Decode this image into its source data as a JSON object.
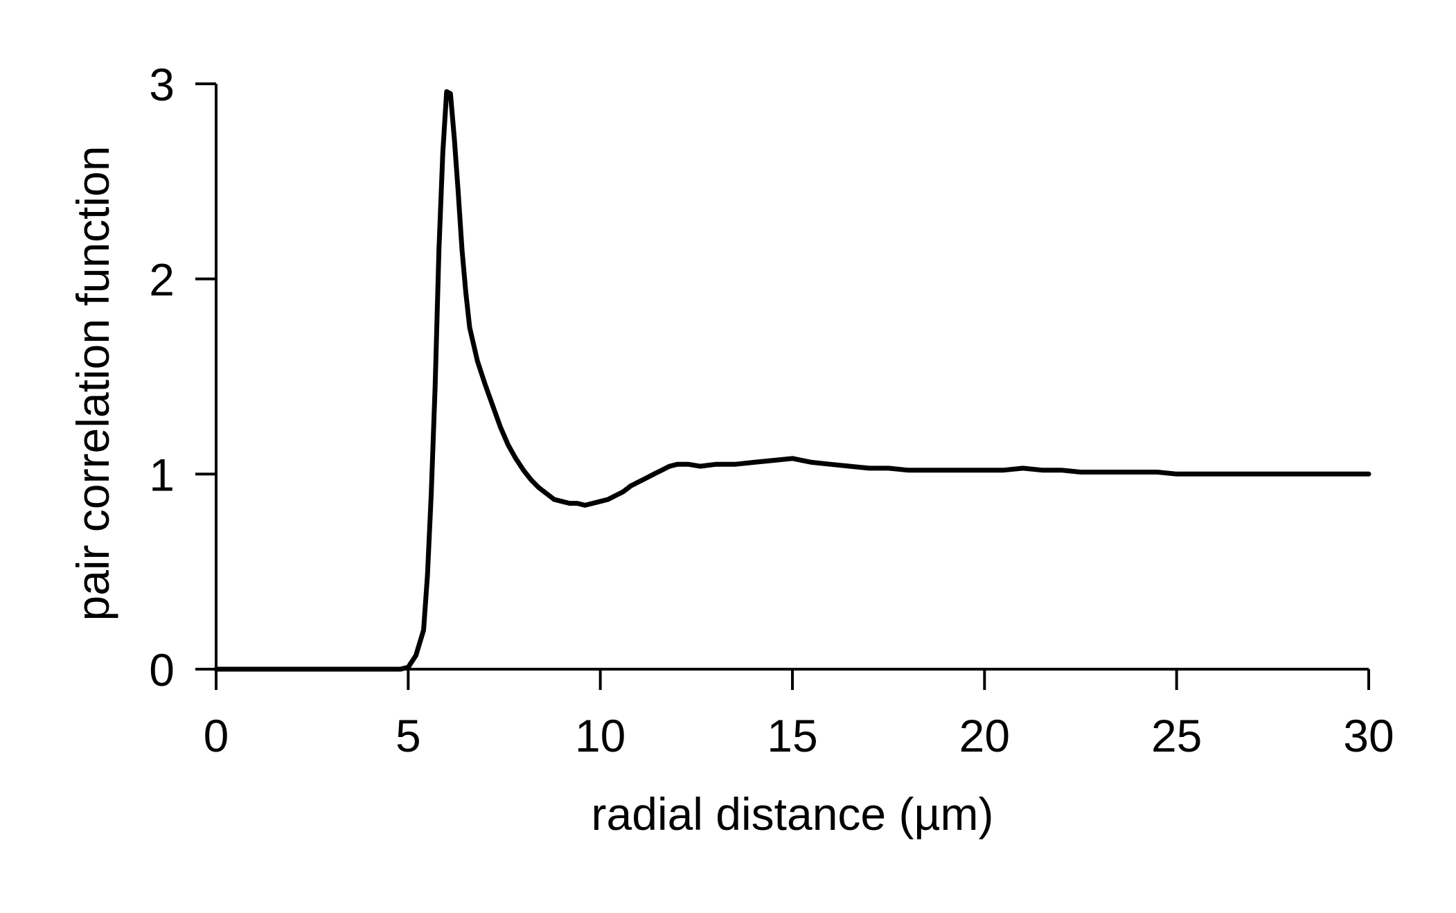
{
  "chart_data": {
    "type": "line",
    "title": "",
    "xlabel": "radial distance (µm)",
    "ylabel": "pair correlation function",
    "xlim": [
      0,
      30
    ],
    "ylim": [
      0,
      3
    ],
    "x_ticks": [
      "0",
      "5",
      "10",
      "15",
      "20",
      "25",
      "30"
    ],
    "y_ticks": [
      "0",
      "1",
      "2",
      "3"
    ],
    "grid": false,
    "legend": "none",
    "line_color": "#000000",
    "series": [
      {
        "x": [
          0,
          1,
          2,
          3,
          4,
          4.8,
          5.0,
          5.2,
          5.4,
          5.5,
          5.6,
          5.7,
          5.8,
          5.9,
          6.0,
          6.1,
          6.2,
          6.3,
          6.4,
          6.5,
          6.6,
          6.8,
          7.0,
          7.2,
          7.4,
          7.6,
          7.8,
          8.0,
          8.2,
          8.4,
          8.6,
          8.8,
          9.0,
          9.2,
          9.4,
          9.6,
          9.8,
          10.0,
          10.2,
          10.4,
          10.6,
          10.8,
          11.0,
          11.2,
          11.4,
          11.6,
          11.8,
          12.0,
          12.3,
          12.6,
          13.0,
          13.5,
          14.0,
          14.5,
          15.0,
          15.5,
          16.0,
          16.5,
          17.0,
          17.5,
          18.0,
          18.5,
          19.0,
          19.5,
          20.0,
          20.5,
          21.0,
          21.5,
          22.0,
          22.5,
          23.0,
          23.5,
          24.0,
          24.5,
          25.0,
          25.5,
          26.0,
          26.5,
          27.0,
          27.5,
          28.0,
          28.5,
          29.0,
          29.5,
          30.0
        ],
        "values": [
          0,
          0,
          0,
          0,
          0,
          0,
          0.01,
          0.07,
          0.2,
          0.48,
          0.9,
          1.45,
          2.15,
          2.65,
          2.96,
          2.95,
          2.72,
          2.45,
          2.15,
          1.93,
          1.75,
          1.58,
          1.46,
          1.35,
          1.24,
          1.15,
          1.08,
          1.02,
          0.97,
          0.93,
          0.9,
          0.87,
          0.86,
          0.85,
          0.85,
          0.84,
          0.85,
          0.86,
          0.87,
          0.89,
          0.91,
          0.94,
          0.96,
          0.98,
          1.0,
          1.02,
          1.04,
          1.05,
          1.05,
          1.04,
          1.05,
          1.05,
          1.06,
          1.07,
          1.08,
          1.06,
          1.05,
          1.04,
          1.03,
          1.03,
          1.02,
          1.02,
          1.02,
          1.02,
          1.02,
          1.02,
          1.03,
          1.02,
          1.02,
          1.01,
          1.01,
          1.01,
          1.01,
          1.01,
          1.0,
          1.0,
          1.0,
          1.0,
          1.0,
          1.0,
          1.0,
          1.0,
          1.0,
          1.0,
          1.0
        ]
      }
    ]
  }
}
